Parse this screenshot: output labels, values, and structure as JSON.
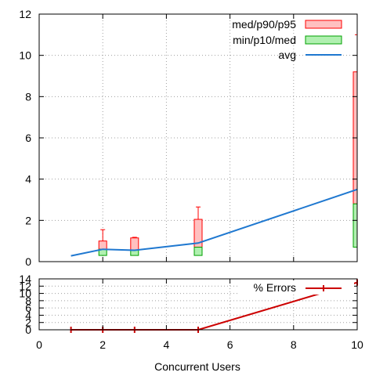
{
  "chart_data": [
    {
      "type": "box",
      "x": [
        1,
        2,
        3,
        5,
        10
      ],
      "xlim": [
        0,
        10
      ],
      "ylim": [
        0,
        12
      ],
      "yticks": [
        "0",
        "2",
        "4",
        "6",
        "8",
        "10",
        "12"
      ],
      "grid": true,
      "legend_position": "top-right",
      "legend": [
        "med/p90/p95",
        "min/p10/med",
        "avg"
      ],
      "series": [
        {
          "name": "med/p90/p95",
          "color": "#ffc0c0",
          "stroke": "#ff0000",
          "boxes": [
            {
              "x": 2,
              "med": 0.6,
              "p90": 1.0,
              "p95": 1.55
            },
            {
              "x": 3,
              "med": 0.55,
              "p90": 1.15,
              "p95": 1.18
            },
            {
              "x": 5,
              "med": 0.7,
              "p90": 2.05,
              "p95": 2.65
            },
            {
              "x": 10,
              "med": 2.8,
              "p90": 9.2,
              "p95": 11.0
            }
          ]
        },
        {
          "name": "min/p10/med",
          "color": "#b0f0b0",
          "stroke": "#00a000",
          "boxes": [
            {
              "x": 2,
              "min": 0.3,
              "p10": 0.3,
              "med": 0.6
            },
            {
              "x": 3,
              "min": 0.3,
              "p10": 0.3,
              "med": 0.55
            },
            {
              "x": 5,
              "min": 0.3,
              "p10": 0.3,
              "med": 0.7
            },
            {
              "x": 10,
              "min": 0.5,
              "p10": 0.7,
              "med": 2.8
            }
          ]
        },
        {
          "name": "avg",
          "color": "#1f78d0",
          "points": [
            [
              1,
              0.28
            ],
            [
              2,
              0.6
            ],
            [
              3,
              0.55
            ],
            [
              5,
              0.9
            ],
            [
              10,
              3.5
            ]
          ]
        }
      ]
    },
    {
      "type": "line",
      "x": [
        1,
        2,
        3,
        5,
        10
      ],
      "xlim": [
        0,
        10
      ],
      "ylim": [
        0,
        14
      ],
      "xlabel": "Concurrent Users",
      "xticks": [
        "0",
        "2",
        "4",
        "6",
        "8",
        "10"
      ],
      "yticks": [
        "0",
        "2",
        "4",
        "6",
        "8",
        "10",
        "12",
        "14"
      ],
      "grid": true,
      "legend_position": "top-right",
      "series": [
        {
          "name": "% Errors",
          "color": "#cc0000",
          "values": [
            0,
            0,
            0,
            0,
            13
          ]
        }
      ]
    }
  ]
}
